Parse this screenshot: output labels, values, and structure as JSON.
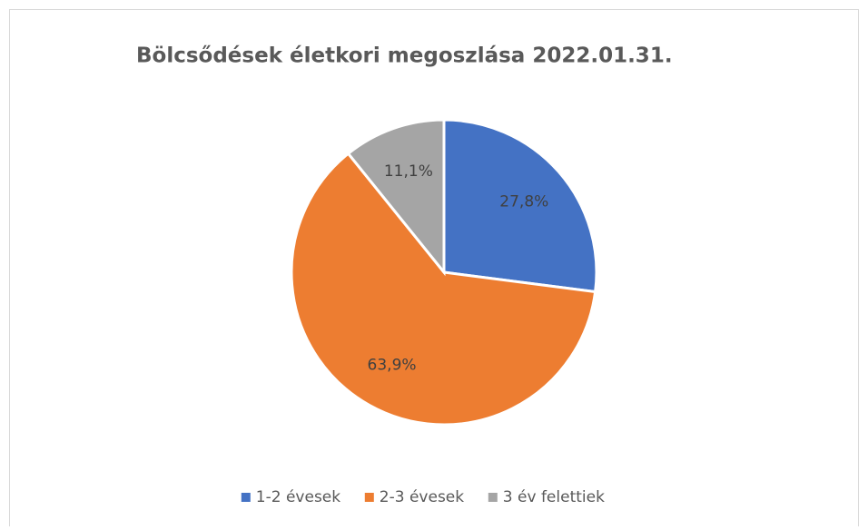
{
  "chart_data": {
    "type": "pie",
    "title": "Bölcsődések életkori megoszlása 2022.01.31.",
    "categories": [
      "1-2 évesek",
      "2-3 évesek",
      "3 év felettiek"
    ],
    "values": [
      27.8,
      63.9,
      11.1
    ],
    "value_labels": [
      "27,8%",
      "63,9%",
      "11,1%"
    ],
    "colors": [
      "#4472c4",
      "#ed7d31",
      "#a5a5a5"
    ],
    "legend": "bottom"
  }
}
